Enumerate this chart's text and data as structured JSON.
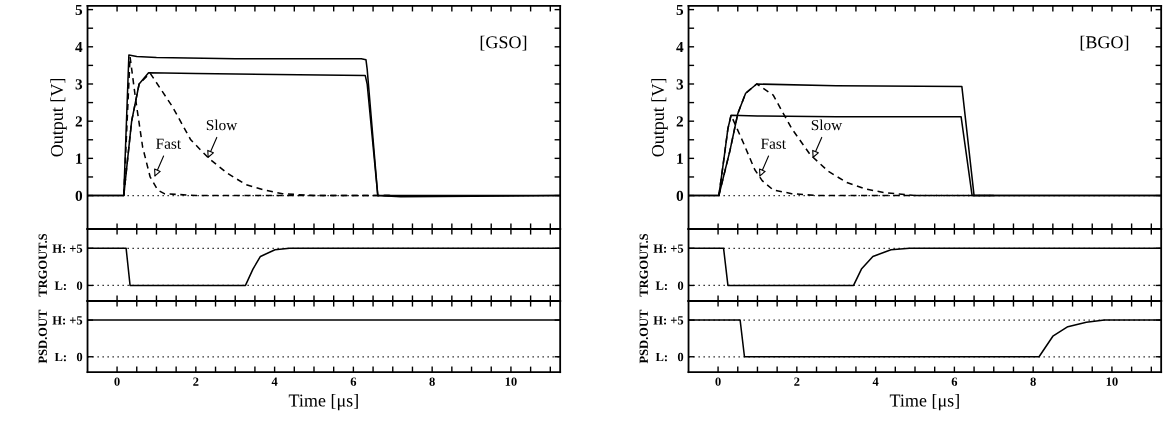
{
  "chart_data": [
    {
      "type": "line",
      "ylabel": "Output [V]",
      "xlim": [
        -0.75,
        11.25
      ],
      "ylim": [
        -0.9,
        5.1
      ],
      "tick_labels": "y",
      "xticks": [
        0,
        {
          "value": 0.5,
          "label": null
        },
        {
          "value": 1,
          "label": null
        },
        {
          "value": 1.5,
          "label": null
        },
        2,
        {
          "value": 2.5,
          "label": null
        },
        {
          "value": 3,
          "label": null
        },
        {
          "value": 3.5,
          "label": null
        },
        4,
        {
          "value": 4.5,
          "label": null
        },
        {
          "value": 5,
          "label": null
        },
        {
          "value": 5.5,
          "label": null
        },
        6,
        {
          "value": 6.5,
          "label": null
        },
        {
          "value": 7,
          "label": null
        },
        {
          "value": 7.5,
          "label": null
        },
        8,
        {
          "value": 8.5,
          "label": null
        },
        {
          "value": 9,
          "label": null
        },
        {
          "value": 9.5,
          "label": null
        },
        10,
        {
          "value": 10.5,
          "label": null
        },
        {
          "value": 11,
          "label": null
        }
      ],
      "yticks": [
        0,
        {
          "value": 0.5,
          "label": null
        },
        1,
        {
          "value": 1.5,
          "label": null
        },
        2,
        {
          "value": 2.5,
          "label": null
        },
        3,
        {
          "value": 3.5,
          "label": null
        },
        4,
        {
          "value": 4.5,
          "label": null
        },
        5
      ],
      "ref_lines": [
        {
          "axis": "y",
          "value": 0,
          "color": "#000000",
          "line_style": "dotted"
        }
      ],
      "annotations": [
        "[BGO]",
        {
          "text": "Fast",
          "x": 1.05,
          "y": 0.5
        },
        {
          "text": "Slow",
          "x": 2.4,
          "y": 1.0
        }
      ],
      "series": [
        {
          "color": "#000000",
          "line_style": "solid",
          "x": [
            -0.75,
            0.02,
            0.15,
            0.25,
            0.33,
            1,
            3,
            6.17,
            6.45,
            11.25
          ],
          "values": [
            0,
            0,
            1.0,
            1.8,
            2.16,
            2.14,
            2.12,
            2.12,
            0,
            0
          ]
        },
        {
          "color": "#000000",
          "line_style": "solid",
          "x": [
            -0.75,
            0.02,
            0.3,
            0.5,
            0.7,
            0.98,
            3,
            6.19,
            6.5,
            11.25
          ],
          "values": [
            0,
            0,
            1.2,
            2.2,
            2.75,
            3.0,
            2.95,
            2.93,
            0,
            0
          ]
        },
        {
          "color": "#000000",
          "line_style": "dashed",
          "x": [
            0.02,
            0.15,
            0.25,
            0.33,
            0.65,
            0.93,
            1.12,
            1.4,
            1.87,
            2.5,
            7
          ],
          "values": [
            0,
            1.0,
            1.8,
            2.16,
            1.4,
            0.7,
            0.4,
            0.15,
            0.05,
            0,
            0
          ]
        },
        {
          "color": "#000000",
          "line_style": "dashed",
          "x": [
            0.02,
            0.3,
            0.5,
            0.7,
            0.98,
            1.4,
            1.87,
            2.34,
            2.8,
            3.27,
            3.74,
            4.2,
            5,
            7
          ],
          "values": [
            0,
            1.2,
            2.2,
            2.75,
            3.0,
            2.7,
            1.8,
            1.1,
            0.65,
            0.35,
            0.18,
            0.08,
            0,
            0
          ]
        }
      ]
    },
    {
      "type": "line",
      "ylabel": "TRGOUT.S",
      "xlim": [
        -0.75,
        11.25
      ],
      "ylim": [
        -2.1,
        7.6
      ],
      "tick_labels": "y",
      "xticks": [
        0,
        {
          "value": 0.5,
          "label": null
        },
        {
          "value": 1,
          "label": null
        },
        {
          "value": 1.5,
          "label": null
        },
        2,
        {
          "value": 2.5,
          "label": null
        },
        {
          "value": 3,
          "label": null
        },
        {
          "value": 3.5,
          "label": null
        },
        4,
        {
          "value": 4.5,
          "label": null
        },
        {
          "value": 5,
          "label": null
        },
        {
          "value": 5.5,
          "label": null
        },
        6,
        {
          "value": 6.5,
          "label": null
        },
        {
          "value": 7,
          "label": null
        },
        {
          "value": 7.5,
          "label": null
        },
        8,
        {
          "value": 8.5,
          "label": null
        },
        {
          "value": 9,
          "label": null
        },
        {
          "value": 9.5,
          "label": null
        },
        10,
        {
          "value": 10.5,
          "label": null
        },
        {
          "value": 11,
          "label": null
        }
      ],
      "yticks": [
        {
          "value": 0,
          "label": "L:   0"
        },
        {
          "value": 5,
          "label": "H: +5"
        }
      ],
      "ref_lines": [
        {
          "axis": "y",
          "value": 0,
          "color": "#000000",
          "line_style": "dotted"
        },
        {
          "axis": "y",
          "value": 5,
          "color": "#000000",
          "line_style": "dotted"
        }
      ],
      "series": [
        {
          "color": "#000000",
          "line_style": "solid",
          "x": [
            -0.75,
            0.14,
            0.25,
            3.44,
            3.64,
            3.93,
            4.39,
            4.86,
            5.5,
            11.25
          ],
          "values": [
            5,
            5,
            0,
            0,
            2.2,
            3.9,
            4.8,
            5,
            5,
            5
          ]
        }
      ]
    },
    {
      "type": "line",
      "ylabel": "PSD.OUT",
      "xlabel": "Time [μs]",
      "xlim": [
        -0.75,
        11.25
      ],
      "ylim": [
        -2.1,
        7.6
      ],
      "xticks": [
        0,
        {
          "value": 0.5,
          "label": null
        },
        {
          "value": 1,
          "label": null
        },
        {
          "value": 1.5,
          "label": null
        },
        2,
        {
          "value": 2.5,
          "label": null
        },
        {
          "value": 3,
          "label": null
        },
        {
          "value": 3.5,
          "label": null
        },
        4,
        {
          "value": 4.5,
          "label": null
        },
        {
          "value": 5,
          "label": null
        },
        {
          "value": 5.5,
          "label": null
        },
        6,
        {
          "value": 6.5,
          "label": null
        },
        {
          "value": 7,
          "label": null
        },
        {
          "value": 7.5,
          "label": null
        },
        8,
        {
          "value": 8.5,
          "label": null
        },
        {
          "value": 9,
          "label": null
        },
        {
          "value": 9.5,
          "label": null
        },
        10,
        {
          "value": 10.5,
          "label": null
        },
        {
          "value": 11,
          "label": null
        }
      ],
      "yticks": [
        {
          "value": 0,
          "label": "L:   0"
        },
        {
          "value": 5,
          "label": "H: +5"
        }
      ],
      "ref_lines": [
        {
          "axis": "y",
          "value": 0,
          "color": "#000000",
          "line_style": "dotted"
        },
        {
          "axis": "y",
          "value": 5,
          "color": "#000000",
          "line_style": "dotted"
        }
      ],
      "series": [
        {
          "color": "#000000",
          "line_style": "solid",
          "x": [
            -0.75,
            0.56,
            0.67,
            8.15,
            8.5,
            8.88,
            9.35,
            9.81,
            10.5,
            11.25
          ],
          "values": [
            5,
            5,
            0,
            0,
            2.8,
            4.1,
            4.7,
            5,
            5,
            5
          ]
        }
      ]
    },
    {
      "type": "line",
      "ylabel": "Output [V]",
      "xlim": [
        -0.75,
        11.25
      ],
      "ylim": [
        -0.9,
        5.1
      ],
      "tick_labels": "y",
      "xticks": [
        0,
        {
          "value": 0.5,
          "label": null
        },
        {
          "value": 1,
          "label": null
        },
        {
          "value": 1.5,
          "label": null
        },
        2,
        {
          "value": 2.5,
          "label": null
        },
        {
          "value": 3,
          "label": null
        },
        {
          "value": 3.5,
          "label": null
        },
        4,
        {
          "value": 4.5,
          "label": null
        },
        {
          "value": 5,
          "label": null
        },
        {
          "value": 5.5,
          "label": null
        },
        6,
        {
          "value": 6.5,
          "label": null
        },
        {
          "value": 7,
          "label": null
        },
        {
          "value": 7.5,
          "label": null
        },
        8,
        {
          "value": 8.5,
          "label": null
        },
        {
          "value": 9,
          "label": null
        },
        {
          "value": 9.5,
          "label": null
        },
        10,
        {
          "value": 10.5,
          "label": null
        },
        {
          "value": 11,
          "label": null
        }
      ],
      "yticks": [
        0,
        {
          "value": 0.5,
          "label": null
        },
        1,
        {
          "value": 1.5,
          "label": null
        },
        2,
        {
          "value": 2.5,
          "label": null
        },
        3,
        {
          "value": 3.5,
          "label": null
        },
        4,
        {
          "value": 4.5,
          "label": null
        },
        5
      ],
      "ref_lines": [
        {
          "axis": "y",
          "value": 0,
          "color": "#000000",
          "line_style": "dotted"
        }
      ],
      "annotations": [
        "[GSO]",
        {
          "text": "Fast",
          "x": 0.95,
          "y": 0.5
        },
        {
          "text": "Slow",
          "x": 2.3,
          "y": 1.0
        }
      ],
      "series": [
        {
          "color": "#000000",
          "line_style": "solid",
          "x": [
            -0.75,
            0.17,
            0.3,
            0.5,
            1,
            3,
            6.2,
            6.32,
            6.35,
            6.62,
            7.2,
            11.25
          ],
          "values": [
            0,
            0,
            3.78,
            3.74,
            3.71,
            3.68,
            3.68,
            3.65,
            3.4,
            0,
            -0.03,
            0
          ]
        },
        {
          "color": "#000000",
          "line_style": "solid",
          "x": [
            -0.75,
            0.17,
            0.37,
            0.56,
            0.8,
            2,
            6.3,
            6.35,
            6.62,
            11.25
          ],
          "values": [
            0,
            0,
            2.0,
            3.0,
            3.3,
            3.28,
            3.23,
            3.0,
            0,
            0
          ]
        },
        {
          "color": "#000000",
          "line_style": "dashed",
          "x": [
            0.17,
            0.33,
            0.47,
            0.65,
            0.84,
            1.03,
            1.2,
            2,
            7
          ],
          "values": [
            0,
            3.73,
            2.6,
            1.3,
            0.5,
            0.15,
            0.05,
            0,
            0
          ]
        },
        {
          "color": "#000000",
          "line_style": "dashed",
          "x": [
            0.17,
            0.37,
            0.56,
            0.84,
            1.4,
            1.87,
            2.33,
            2.8,
            3.26,
            3.73,
            4.2,
            5,
            7
          ],
          "values": [
            0,
            2.0,
            3.0,
            3.29,
            2.4,
            1.5,
            1.0,
            0.6,
            0.3,
            0.15,
            0.05,
            0,
            0
          ]
        }
      ]
    },
    {
      "type": "line",
      "ylabel": "TRGOUT.S",
      "xlim": [
        -0.75,
        11.25
      ],
      "ylim": [
        -2.1,
        7.6
      ],
      "tick_labels": "y",
      "xticks": [
        0,
        {
          "value": 0.5,
          "label": null
        },
        {
          "value": 1,
          "label": null
        },
        {
          "value": 1.5,
          "label": null
        },
        2,
        {
          "value": 2.5,
          "label": null
        },
        {
          "value": 3,
          "label": null
        },
        {
          "value": 3.5,
          "label": null
        },
        4,
        {
          "value": 4.5,
          "label": null
        },
        {
          "value": 5,
          "label": null
        },
        {
          "value": 5.5,
          "label": null
        },
        6,
        {
          "value": 6.5,
          "label": null
        },
        {
          "value": 7,
          "label": null
        },
        {
          "value": 7.5,
          "label": null
        },
        8,
        {
          "value": 8.5,
          "label": null
        },
        {
          "value": 9,
          "label": null
        },
        {
          "value": 9.5,
          "label": null
        },
        10,
        {
          "value": 10.5,
          "label": null
        },
        {
          "value": 11,
          "label": null
        }
      ],
      "yticks": [
        {
          "value": 0,
          "label": "L:   0"
        },
        {
          "value": 5,
          "label": "H: +5"
        }
      ],
      "ref_lines": [
        {
          "axis": "y",
          "value": 0,
          "color": "#000000",
          "line_style": "dotted"
        },
        {
          "axis": "y",
          "value": 5,
          "color": "#000000",
          "line_style": "dotted"
        }
      ],
      "series": [
        {
          "color": "#000000",
          "line_style": "solid",
          "x": [
            -0.75,
            0.23,
            0.33,
            3.26,
            3.45,
            3.64,
            4.01,
            4.38,
            5,
            11.25
          ],
          "values": [
            5,
            5,
            0,
            0,
            2.2,
            3.9,
            4.8,
            5,
            5,
            5
          ]
        }
      ]
    },
    {
      "type": "line",
      "ylabel": "PSD.OUT",
      "xlabel": "Time [μs]",
      "xlim": [
        -0.75,
        11.25
      ],
      "ylim": [
        -2.1,
        7.6
      ],
      "xticks": [
        0,
        {
          "value": 0.5,
          "label": null
        },
        {
          "value": 1,
          "label": null
        },
        {
          "value": 1.5,
          "label": null
        },
        2,
        {
          "value": 2.5,
          "label": null
        },
        {
          "value": 3,
          "label": null
        },
        {
          "value": 3.5,
          "label": null
        },
        4,
        {
          "value": 4.5,
          "label": null
        },
        {
          "value": 5,
          "label": null
        },
        {
          "value": 5.5,
          "label": null
        },
        6,
        {
          "value": 6.5,
          "label": null
        },
        {
          "value": 7,
          "label": null
        },
        {
          "value": 7.5,
          "label": null
        },
        8,
        {
          "value": 8.5,
          "label": null
        },
        {
          "value": 9,
          "label": null
        },
        {
          "value": 9.5,
          "label": null
        },
        10,
        {
          "value": 10.5,
          "label": null
        },
        {
          "value": 11,
          "label": null
        }
      ],
      "yticks": [
        {
          "value": 0,
          "label": "L:   0"
        },
        {
          "value": 5,
          "label": "H: +5"
        }
      ],
      "ref_lines": [
        {
          "axis": "y",
          "value": 0,
          "color": "#000000",
          "line_style": "dotted"
        }
      ],
      "series": [
        {
          "color": "#000000",
          "line_style": "solid",
          "x": [
            -0.75,
            11.25
          ],
          "values": [
            5,
            5
          ]
        }
      ]
    }
  ]
}
